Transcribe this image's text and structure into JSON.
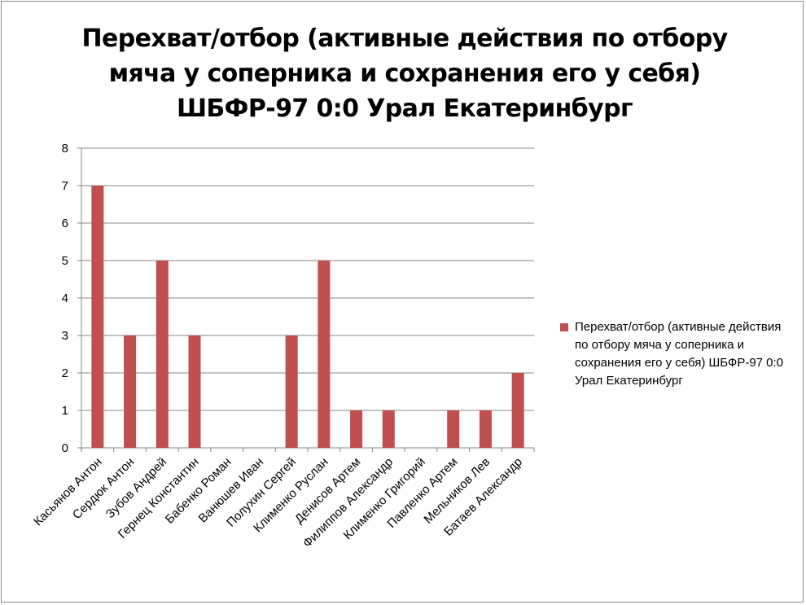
{
  "chart_data": {
    "type": "bar",
    "title_lines": [
      "Перехват/отбор (активные действия по отбору",
      "мяча у соперника и сохранения его у себя)",
      "ШБФР-97  0:0  Урал Екатеринбург"
    ],
    "categories": [
      "Касьянов Антон",
      "Сердюк Антон",
      "Зубов Андрей",
      "Гернец Константин",
      "Бабенко Роман",
      "Ванюшев Иван",
      "Полухин Сергей",
      "Клименко Руслан",
      "Денисов Артем",
      "Филиппов Александр",
      "Клименко Григорий",
      "Павленко Артем",
      "Мельников Лев",
      "Батаев Александр"
    ],
    "series": [
      {
        "name": "Перехват/отбор (активные действия по отбору мяча у соперника и сохранения его у себя) ШБФР-97  0:0  Урал Екатеринбург",
        "values": [
          7,
          3,
          5,
          3,
          0,
          0,
          3,
          5,
          1,
          1,
          0,
          1,
          1,
          2
        ],
        "color": "#c0504d"
      }
    ],
    "ylim": [
      0,
      8
    ],
    "yticks": [
      "0",
      "1",
      "2",
      "3",
      "4",
      "5",
      "6",
      "7",
      "8"
    ],
    "grid": true,
    "legend_position": "right"
  }
}
